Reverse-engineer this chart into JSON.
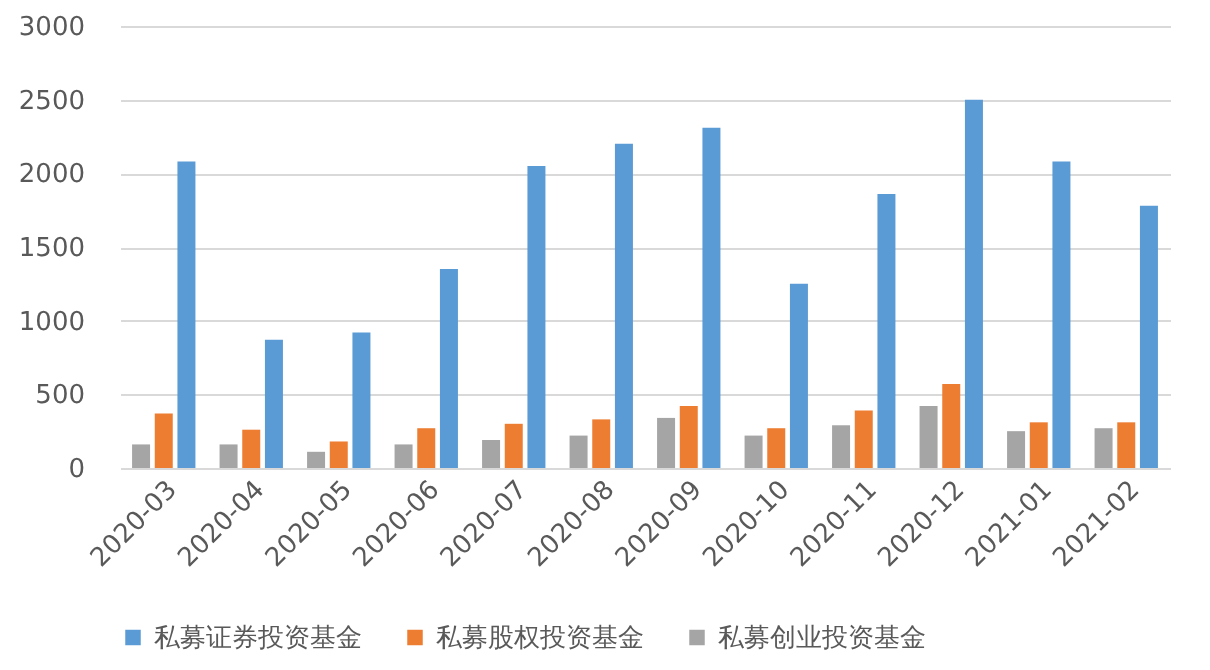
{
  "chart_data": {
    "type": "bar",
    "categories": [
      "2020-03",
      "2020-04",
      "2020-05",
      "2020-06",
      "2020-07",
      "2020-08",
      "2020-09",
      "2020-10",
      "2020-11",
      "2020-12",
      "2021-01",
      "2021-02"
    ],
    "series": [
      {
        "name": "私募证券投资基金",
        "color": "#5b9bd5",
        "values": [
          2080,
          870,
          920,
          1350,
          2050,
          2200,
          2310,
          1250,
          1860,
          2500,
          2080,
          1780
        ]
      },
      {
        "name": "私募股权投资基金",
        "color": "#ed7d31",
        "values": [
          370,
          260,
          180,
          270,
          300,
          330,
          420,
          270,
          390,
          570,
          310,
          310
        ]
      },
      {
        "name": "私募创业投资基金",
        "color": "#a5a5a5",
        "values": [
          160,
          160,
          110,
          160,
          190,
          220,
          340,
          220,
          290,
          420,
          250,
          270
        ]
      }
    ],
    "ylim": [
      0,
      3000
    ],
    "yticks": [
      0,
      500,
      1000,
      1500,
      2000,
      2500,
      3000
    ],
    "grid": "y",
    "legend": "bottom"
  }
}
